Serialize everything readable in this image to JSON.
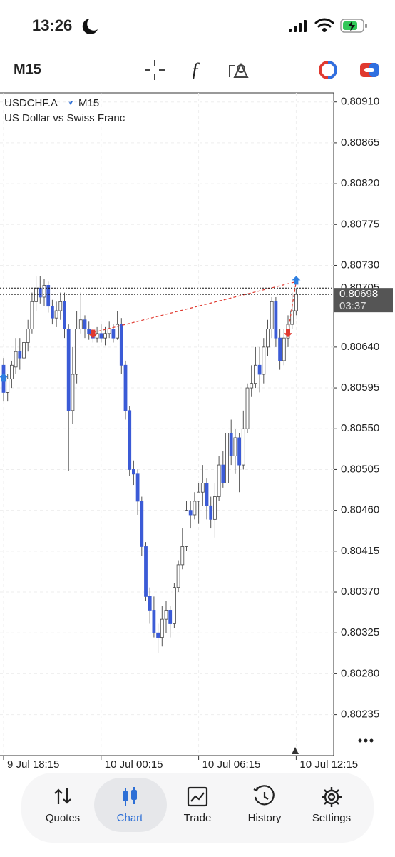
{
  "status": {
    "time": "13:26"
  },
  "toolbar": {
    "timeframe": "M15"
  },
  "tabs": [
    "Quotes",
    "Chart",
    "Trade",
    "History",
    "Settings"
  ],
  "chart_data": {
    "type": "candlestick",
    "symbol": "USDCHF.A",
    "timeframe": "M15",
    "description": "US Dollar vs Swiss Franc",
    "categories": [
      "9 Jul 18:15",
      null,
      null,
      null,
      null,
      null,
      null,
      null,
      null,
      null,
      null,
      null,
      null,
      null,
      null,
      null,
      null,
      null,
      null,
      null,
      null,
      null,
      null,
      null,
      "10 Jul 00:15",
      null,
      null,
      null,
      null,
      null,
      null,
      null,
      null,
      null,
      null,
      null,
      null,
      null,
      null,
      null,
      null,
      null,
      null,
      null,
      null,
      null,
      null,
      null,
      "10 Jul 06:15",
      null,
      null,
      null,
      null,
      null,
      null,
      null,
      null,
      null,
      null,
      null,
      null,
      null,
      null,
      null,
      null,
      null,
      null,
      null,
      null,
      null,
      null,
      null,
      "10 Jul 12:15"
    ],
    "open": [
      0.8062,
      0.8059,
      0.80605,
      0.80618,
      0.80635,
      0.80628,
      0.80645,
      0.8066,
      0.8069,
      0.80705,
      0.80695,
      0.80708,
      0.80685,
      0.80672,
      0.8068,
      0.8069,
      0.8066,
      0.8057,
      0.8061,
      0.8066,
      0.8067,
      0.8066,
      0.80655,
      0.8065,
      0.80655,
      0.8065,
      0.80655,
      0.8066,
      0.8065,
      0.80665,
      0.8062,
      0.8057,
      0.80505,
      0.805,
      0.8047,
      0.8042,
      0.80365,
      0.8035,
      0.80325,
      0.8032,
      0.8034,
      0.8035,
      0.80335,
      0.80375,
      0.804,
      0.8042,
      0.8046,
      0.80455,
      0.8047,
      0.8048,
      0.8049,
      0.80465,
      0.8045,
      0.80475,
      0.8051,
      0.8049,
      0.80545,
      0.8052,
      0.8054,
      0.8051,
      0.8055,
      0.80595,
      0.806,
      0.8062,
      0.8061,
      0.8064,
      0.8066,
      0.8069,
      0.8065,
      0.80625,
      0.8065,
      0.80665,
      0.8068
    ],
    "high": [
      0.80628,
      0.8061,
      0.80625,
      0.8065,
      0.8065,
      0.8066,
      0.8067,
      0.807,
      0.80718,
      0.80718,
      0.80715,
      0.80712,
      0.80692,
      0.8069,
      0.807,
      0.807,
      0.80665,
      0.8064,
      0.8068,
      0.807,
      0.80675,
      0.80668,
      0.8066,
      0.80662,
      0.80665,
      0.80662,
      0.80668,
      0.80665,
      0.8068,
      0.80672,
      0.80625,
      0.80575,
      0.80515,
      0.80505,
      0.80475,
      0.80425,
      0.80375,
      0.80365,
      0.80335,
      0.80355,
      0.8036,
      0.80355,
      0.8038,
      0.80405,
      0.8044,
      0.8047,
      0.8047,
      0.8048,
      0.8049,
      0.8051,
      0.80495,
      0.80475,
      0.8049,
      0.8052,
      0.80525,
      0.8055,
      0.8056,
      0.8055,
      0.80545,
      0.8057,
      0.806,
      0.8062,
      0.8064,
      0.8064,
      0.8065,
      0.8067,
      0.80695,
      0.80695,
      0.8066,
      0.8066,
      0.80675,
      0.807,
      0.80705
    ],
    "low": [
      0.8058,
      0.8058,
      0.80595,
      0.8061,
      0.80615,
      0.8062,
      0.80635,
      0.80655,
      0.8068,
      0.80688,
      0.80685,
      0.80678,
      0.80665,
      0.80662,
      0.8067,
      0.8065,
      0.80503,
      0.80555,
      0.806,
      0.80655,
      0.8065,
      0.80648,
      0.80645,
      0.80645,
      0.80645,
      0.80642,
      0.8065,
      0.80645,
      0.80648,
      0.8061,
      0.8056,
      0.80498,
      0.80488,
      0.80455,
      0.8041,
      0.8036,
      0.80335,
      0.8032,
      0.80303,
      0.8031,
      0.80325,
      0.8032,
      0.8033,
      0.8037,
      0.80395,
      0.80415,
      0.8044,
      0.8045,
      0.80445,
      0.80465,
      0.8045,
      0.8044,
      0.8043,
      0.8047,
      0.80485,
      0.80485,
      0.8051,
      0.805,
      0.8048,
      0.80505,
      0.80545,
      0.80585,
      0.80595,
      0.8059,
      0.806,
      0.8063,
      0.8065,
      0.8064,
      0.80615,
      0.8062,
      0.8064,
      0.8066,
      0.80675
    ],
    "close": [
      0.8059,
      0.80605,
      0.8062,
      0.80635,
      0.80628,
      0.80645,
      0.8066,
      0.8069,
      0.80705,
      0.80695,
      0.80708,
      0.80685,
      0.80672,
      0.8068,
      0.8069,
      0.8066,
      0.8057,
      0.8061,
      0.8066,
      0.8067,
      0.8066,
      0.80655,
      0.8065,
      0.80655,
      0.8065,
      0.80655,
      0.8066,
      0.8065,
      0.80665,
      0.8062,
      0.8057,
      0.80505,
      0.805,
      0.8047,
      0.8042,
      0.80365,
      0.8035,
      0.80325,
      0.8032,
      0.8034,
      0.8035,
      0.80335,
      0.80375,
      0.804,
      0.8042,
      0.8046,
      0.80455,
      0.8047,
      0.8048,
      0.8049,
      0.80465,
      0.8045,
      0.80475,
      0.8051,
      0.8049,
      0.80545,
      0.8052,
      0.8054,
      0.8051,
      0.8055,
      0.80595,
      0.806,
      0.8062,
      0.8061,
      0.8064,
      0.8066,
      0.8069,
      0.8065,
      0.80625,
      0.8065,
      0.80665,
      0.8068,
      0.80698
    ],
    "up_color": "#ffffff",
    "down_color": "#3b5bd6",
    "ylim": [
      0.80204,
      0.8092
    ],
    "yticks": [
      {
        "value": 0.8091,
        "label": "0.80910"
      },
      0.80865,
      {
        "value": 0.8082,
        "label": "0.80820"
      },
      0.80775,
      {
        "value": 0.8073,
        "label": "0.80730"
      },
      {
        "value": 0.8064,
        "label": "0.80640"
      },
      0.80595,
      {
        "value": 0.8055,
        "label": "0.80550"
      },
      0.80505,
      {
        "value": 0.8046,
        "label": "0.80460"
      },
      0.80415,
      {
        "value": 0.8037,
        "label": "0.80370"
      },
      0.80325,
      {
        "value": 0.8028,
        "label": "0.80280"
      },
      0.80235
    ],
    "grid": true,
    "ask": {
      "value": 0.80705,
      "label": "0.80705"
    },
    "bid": {
      "value": 0.80698,
      "label": "0.80698"
    },
    "countdown": "03:37",
    "trades": [
      {
        "index": 0,
        "price": 0.80605,
        "side": "buy"
      },
      {
        "index": 22,
        "price": 0.80656,
        "side": "sell"
      },
      {
        "index": 70,
        "price": 0.80657,
        "side": "sell"
      },
      {
        "index": 72,
        "price": 0.80712,
        "side": "buy"
      }
    ],
    "links": [
      [
        1,
        3
      ],
      [
        2,
        3
      ]
    ]
  }
}
